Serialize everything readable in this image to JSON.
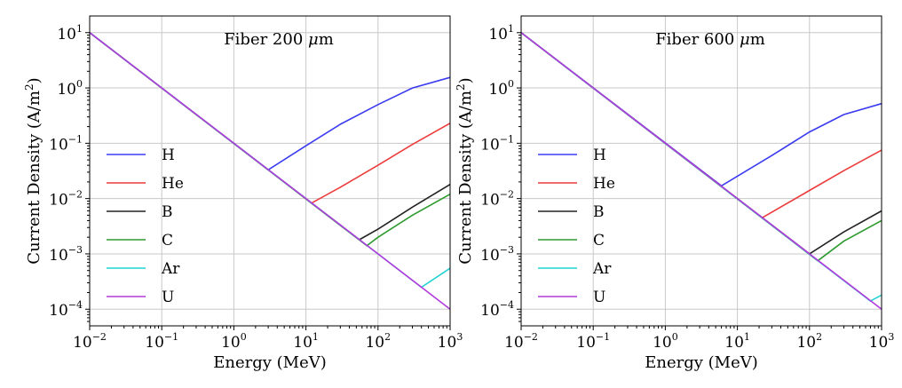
{
  "chart_data": [
    {
      "type": "line",
      "title": "Fiber 200 μm",
      "xlabel": "Energy (MeV)",
      "ylabel": "Current Density (A/m²)",
      "xscale": "log",
      "yscale": "log",
      "xlim": [
        0.01,
        1000
      ],
      "ylim": [
        5e-05,
        20
      ],
      "grid": true,
      "legend_position": "left",
      "x_ticks": [
        {
          "base": "10",
          "exp": "−2"
        },
        {
          "base": "10",
          "exp": "−1"
        },
        {
          "base": "10",
          "exp": "0"
        },
        {
          "base": "10",
          "exp": "1"
        },
        {
          "base": "10",
          "exp": "2"
        },
        {
          "base": "10",
          "exp": "3"
        }
      ],
      "y_ticks": [
        {
          "base": "10",
          "exp": "−4"
        },
        {
          "base": "10",
          "exp": "−3"
        },
        {
          "base": "10",
          "exp": "−2"
        },
        {
          "base": "10",
          "exp": "−1"
        },
        {
          "base": "10",
          "exp": "0"
        },
        {
          "base": "10",
          "exp": "1"
        }
      ],
      "series": [
        {
          "name": "H",
          "color": "#3b3bf0",
          "x": [
            0.01,
            3,
            10,
            30,
            100,
            300,
            1000
          ],
          "y": [
            10,
            0.033,
            0.09,
            0.22,
            0.5,
            1.0,
            1.55
          ]
        },
        {
          "name": "He",
          "color": "#ec3b3b",
          "x": [
            0.01,
            12,
            30,
            100,
            300,
            1000
          ],
          "y": [
            10,
            0.0083,
            0.016,
            0.04,
            0.095,
            0.23
          ]
        },
        {
          "name": "B",
          "color": "#222222",
          "x": [
            0.01,
            55,
            100,
            300,
            1000
          ],
          "y": [
            10,
            0.0018,
            0.0028,
            0.007,
            0.018
          ]
        },
        {
          "name": "C",
          "color": "#2e9a2e",
          "x": [
            0.01,
            70,
            100,
            300,
            1000
          ],
          "y": [
            10,
            0.0014,
            0.002,
            0.005,
            0.012
          ]
        },
        {
          "name": "Ar",
          "color": "#22d3d3",
          "x": [
            0.01,
            400,
            1000
          ],
          "y": [
            10,
            0.00025,
            0.00055
          ]
        },
        {
          "name": "U",
          "color": "#b23bdc",
          "x": [
            0.01,
            1000
          ],
          "y": [
            10,
            0.0001
          ]
        }
      ]
    },
    {
      "type": "line",
      "title": "Fiber 600 μm",
      "xlabel": "Energy (MeV)",
      "ylabel": "Current Density (A/m²)",
      "xscale": "log",
      "yscale": "log",
      "xlim": [
        0.01,
        1000
      ],
      "ylim": [
        5e-05,
        20
      ],
      "grid": true,
      "legend_position": "left",
      "x_ticks": [
        {
          "base": "10",
          "exp": "−2"
        },
        {
          "base": "10",
          "exp": "−1"
        },
        {
          "base": "10",
          "exp": "0"
        },
        {
          "base": "10",
          "exp": "1"
        },
        {
          "base": "10",
          "exp": "2"
        },
        {
          "base": "10",
          "exp": "3"
        }
      ],
      "y_ticks": [
        {
          "base": "10",
          "exp": "−4"
        },
        {
          "base": "10",
          "exp": "−3"
        },
        {
          "base": "10",
          "exp": "−2"
        },
        {
          "base": "10",
          "exp": "−1"
        },
        {
          "base": "10",
          "exp": "0"
        },
        {
          "base": "10",
          "exp": "1"
        }
      ],
      "series": [
        {
          "name": "H",
          "color": "#3b3bf0",
          "x": [
            0.01,
            6,
            30,
            100,
            300,
            1000
          ],
          "y": [
            10,
            0.017,
            0.06,
            0.16,
            0.33,
            0.52
          ]
        },
        {
          "name": "He",
          "color": "#ec3b3b",
          "x": [
            0.01,
            22,
            100,
            300,
            1000
          ],
          "y": [
            10,
            0.0045,
            0.014,
            0.032,
            0.075
          ]
        },
        {
          "name": "B",
          "color": "#222222",
          "x": [
            0.01,
            100,
            300,
            1000
          ],
          "y": [
            10,
            0.001,
            0.0025,
            0.006
          ]
        },
        {
          "name": "C",
          "color": "#2e9a2e",
          "x": [
            0.01,
            130,
            300,
            1000
          ],
          "y": [
            10,
            0.00075,
            0.0017,
            0.004
          ]
        },
        {
          "name": "Ar",
          "color": "#22d3d3",
          "x": [
            0.01,
            700,
            1000
          ],
          "y": [
            10,
            0.00014,
            0.00018
          ]
        },
        {
          "name": "U",
          "color": "#b23bdc",
          "x": [
            0.01,
            1000
          ],
          "y": [
            10,
            0.0001
          ]
        }
      ]
    }
  ]
}
